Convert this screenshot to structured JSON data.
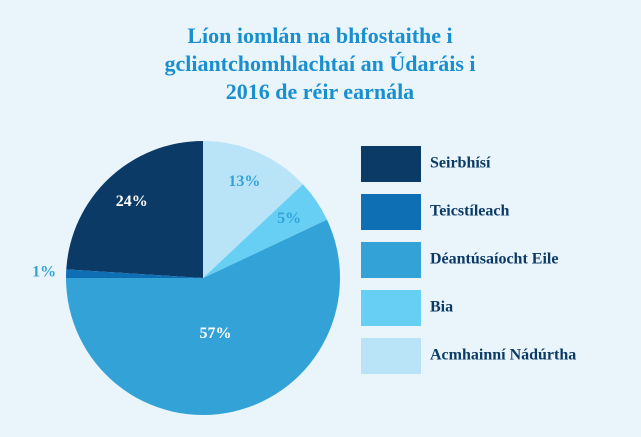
{
  "chart_data": {
    "type": "pie",
    "title": [
      "Líon iomlán na bhfostaithe i",
      "gcliantchomhlachtaí an Údaráis i",
      "2016 de réir earnála"
    ],
    "categories": [
      "Seirbhísí",
      "Teicstíleach",
      "Déantúsaíocht Eile",
      "Bia",
      "Acmhainní Nádúrtha"
    ],
    "values": [
      24,
      1,
      57,
      5,
      13
    ],
    "value_labels": [
      "24%",
      "1%",
      "57%",
      "5%",
      "13%"
    ],
    "colors": [
      "#0b3a66",
      "#0f6fb5",
      "#33a3d7",
      "#66cff3",
      "#b9e4f8"
    ],
    "label_colors": [
      "#ffffff",
      "#33a3d7",
      "#ffffff",
      "#33a3d7",
      "#33a3d7"
    ],
    "legend": "right"
  }
}
